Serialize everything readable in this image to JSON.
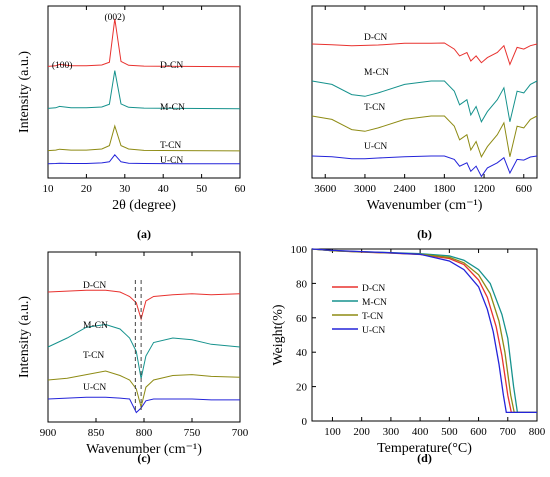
{
  "chart_data": [
    {
      "panel": "(a)",
      "type": "line",
      "xlabel": "2θ (degree)",
      "ylabel": "Intensity (a.u.)",
      "xlim": [
        10,
        60
      ],
      "xticks": [
        "10",
        "20",
        "30",
        "40",
        "50",
        "60"
      ],
      "annotations": [
        "(100)",
        "(002)"
      ],
      "series": [
        {
          "name": "D-CN",
          "color": "#e8322f",
          "x": [
            10,
            12,
            13,
            16,
            20,
            24,
            26,
            27.4,
            29,
            31,
            35,
            45,
            60
          ],
          "values": [
            0.2,
            0.22,
            0.27,
            0.22,
            0.22,
            0.25,
            0.35,
            1.9,
            0.38,
            0.24,
            0.21,
            0.2,
            0.19
          ]
        },
        {
          "name": "M-CN",
          "color": "#16928d",
          "x": [
            10,
            12,
            13,
            16,
            20,
            24,
            26,
            27.4,
            29,
            31,
            35,
            45,
            60
          ],
          "values": [
            0.2,
            0.22,
            0.27,
            0.22,
            0.22,
            0.25,
            0.35,
            1.55,
            0.36,
            0.24,
            0.21,
            0.2,
            0.19
          ]
        },
        {
          "name": "T-CN",
          "color": "#8e8b14",
          "x": [
            10,
            12,
            13,
            16,
            20,
            24,
            26,
            27.4,
            29,
            31,
            35,
            45,
            60
          ],
          "values": [
            0.12,
            0.14,
            0.17,
            0.14,
            0.14,
            0.18,
            0.3,
            1.0,
            0.3,
            0.18,
            0.13,
            0.12,
            0.11
          ]
        },
        {
          "name": "U-CN",
          "color": "#2424d9",
          "x": [
            10,
            12,
            13,
            16,
            20,
            24,
            26,
            27.4,
            29,
            31,
            35,
            45,
            60
          ],
          "values": [
            0.08,
            0.09,
            0.1,
            0.09,
            0.09,
            0.11,
            0.15,
            0.4,
            0.15,
            0.1,
            0.09,
            0.08,
            0.08
          ]
        }
      ]
    },
    {
      "panel": "(b)",
      "type": "line",
      "xlabel": "Wavenumber (cm⁻¹)",
      "ylabel": "",
      "xlim": [
        3800,
        400
      ],
      "xticks": [
        "3600",
        "3000",
        "2400",
        "1800",
        "1200",
        "600"
      ],
      "series": [
        {
          "name": "D-CN",
          "color": "#e8322f",
          "x": [
            3800,
            3500,
            3200,
            3000,
            2800,
            2400,
            2000,
            1800,
            1650,
            1570,
            1460,
            1400,
            1320,
            1240,
            1150,
            1000,
            900,
            810,
            700,
            600,
            500,
            400
          ],
          "values": [
            0.0,
            -0.02,
            -0.05,
            -0.04,
            -0.03,
            0.02,
            0.02,
            0.03,
            -0.15,
            -0.35,
            -0.25,
            -0.5,
            -0.35,
            -0.55,
            -0.4,
            -0.25,
            -0.05,
            -0.6,
            -0.1,
            -0.15,
            -0.05,
            0.0
          ]
        },
        {
          "name": "M-CN",
          "color": "#16928d",
          "x": [
            3800,
            3500,
            3200,
            3000,
            2800,
            2400,
            2000,
            1800,
            1650,
            1570,
            1460,
            1400,
            1320,
            1240,
            1150,
            1000,
            900,
            810,
            700,
            600,
            500,
            400
          ],
          "values": [
            0.0,
            -0.1,
            -0.4,
            -0.45,
            -0.35,
            -0.1,
            0.0,
            0.0,
            -0.3,
            -0.7,
            -0.55,
            -1.0,
            -0.75,
            -1.2,
            -0.9,
            -0.55,
            -0.2,
            -1.2,
            -0.3,
            -0.35,
            -0.1,
            0.0
          ]
        },
        {
          "name": "T-CN",
          "color": "#8e8b14",
          "x": [
            3800,
            3500,
            3200,
            3000,
            2800,
            2400,
            2000,
            1800,
            1650,
            1570,
            1460,
            1400,
            1320,
            1240,
            1150,
            1000,
            900,
            810,
            700,
            600,
            500,
            400
          ],
          "values": [
            0.0,
            -0.1,
            -0.4,
            -0.45,
            -0.35,
            -0.1,
            0.0,
            0.0,
            -0.3,
            -0.7,
            -0.55,
            -1.0,
            -0.75,
            -1.2,
            -0.9,
            -0.55,
            -0.2,
            -1.2,
            -0.3,
            -0.35,
            -0.1,
            0.0
          ]
        },
        {
          "name": "U-CN",
          "color": "#2424d9",
          "x": [
            3800,
            3500,
            3200,
            3000,
            2800,
            2400,
            2000,
            1800,
            1650,
            1570,
            1460,
            1400,
            1320,
            1240,
            1150,
            1000,
            900,
            810,
            700,
            600,
            500,
            400
          ],
          "values": [
            0.0,
            -0.02,
            -0.08,
            -0.08,
            -0.06,
            -0.02,
            0.0,
            0.0,
            -0.1,
            -0.3,
            -0.2,
            -0.45,
            -0.3,
            -0.6,
            -0.35,
            -0.2,
            -0.05,
            -0.5,
            -0.1,
            -0.12,
            -0.03,
            0.0
          ]
        }
      ]
    },
    {
      "panel": "(c)",
      "type": "line",
      "xlabel": "Wavenumber (cm⁻¹)",
      "ylabel": "Intensity (a.u.)",
      "xlim": [
        900,
        700
      ],
      "xticks": [
        "900",
        "850",
        "800",
        "750",
        "700"
      ],
      "reference_lines": [
        803,
        809
      ],
      "series": [
        {
          "name": "D-CN",
          "color": "#e8322f",
          "x": [
            900,
            880,
            860,
            840,
            825,
            815,
            808,
            803,
            798,
            790,
            770,
            750,
            730,
            700
          ],
          "values": [
            0.0,
            0.01,
            0.02,
            0.02,
            0.0,
            -0.05,
            -0.12,
            -0.3,
            -0.1,
            -0.05,
            -0.03,
            -0.02,
            -0.03,
            -0.02
          ]
        },
        {
          "name": "M-CN",
          "color": "#16928d",
          "x": [
            900,
            880,
            860,
            840,
            825,
            815,
            808,
            803,
            798,
            790,
            770,
            750,
            730,
            700
          ],
          "values": [
            0.0,
            0.1,
            0.22,
            0.25,
            0.2,
            0.1,
            -0.05,
            -0.35,
            -0.1,
            0.05,
            0.1,
            0.08,
            0.03,
            0.0
          ]
        },
        {
          "name": "T-CN",
          "color": "#8e8b14",
          "x": [
            900,
            880,
            860,
            840,
            825,
            815,
            808,
            803,
            798,
            790,
            770,
            750,
            730,
            700
          ],
          "values": [
            0.0,
            0.02,
            0.06,
            0.1,
            0.05,
            0.0,
            -0.1,
            -0.3,
            -0.08,
            0.0,
            0.05,
            0.06,
            0.04,
            0.03
          ]
        },
        {
          "name": "U-CN",
          "color": "#2424d9",
          "x": [
            900,
            880,
            860,
            840,
            825,
            815,
            808,
            803,
            798,
            790,
            770,
            750,
            730,
            700
          ],
          "values": [
            0.0,
            0.01,
            0.02,
            0.02,
            0.01,
            0.0,
            -0.15,
            -0.1,
            -0.02,
            0.0,
            0.0,
            0.0,
            -0.01,
            -0.01
          ]
        }
      ]
    },
    {
      "panel": "(d)",
      "type": "line",
      "xlabel": "Temperature(°C)",
      "ylabel": "Weight(%)",
      "xlim": [
        30,
        800
      ],
      "ylim": [
        0,
        100
      ],
      "xticks": [
        "100",
        "200",
        "300",
        "400",
        "500",
        "600",
        "700",
        "800"
      ],
      "yticks": [
        "0",
        "20",
        "40",
        "60",
        "80",
        "100"
      ],
      "legend": "upper-left",
      "series": [
        {
          "name": "D-CN",
          "color": "#e8322f",
          "x": [
            30,
            100,
            200,
            300,
            400,
            500,
            550,
            600,
            630,
            660,
            680,
            700,
            712,
            720,
            800
          ],
          "values": [
            100,
            99,
            98.2,
            97.6,
            96.8,
            94.5,
            91,
            82,
            72,
            55,
            38,
            15,
            5,
            5,
            5
          ]
        },
        {
          "name": "M-CN",
          "color": "#16928d",
          "x": [
            30,
            100,
            200,
            300,
            400,
            500,
            550,
            600,
            640,
            680,
            700,
            720,
            733,
            740,
            800
          ],
          "values": [
            100,
            99,
            98.4,
            97.9,
            97.3,
            96.0,
            93.5,
            88,
            80,
            62,
            48,
            20,
            5,
            5,
            5
          ]
        },
        {
          "name": "T-CN",
          "color": "#8e8b14",
          "x": [
            30,
            100,
            200,
            300,
            400,
            500,
            550,
            600,
            640,
            670,
            690,
            710,
            722,
            730,
            800
          ],
          "values": [
            100,
            99,
            98.3,
            97.7,
            97.0,
            95.2,
            92,
            85,
            74,
            58,
            40,
            15,
            5,
            5,
            5
          ]
        },
        {
          "name": "U-CN",
          "color": "#2424d9",
          "x": [
            30,
            100,
            200,
            300,
            400,
            500,
            550,
            600,
            630,
            650,
            670,
            685,
            695,
            700,
            800
          ],
          "values": [
            100,
            99.2,
            98.5,
            97.8,
            96.9,
            93.0,
            88,
            78,
            65,
            52,
            33,
            15,
            5,
            5,
            5
          ]
        }
      ]
    }
  ]
}
